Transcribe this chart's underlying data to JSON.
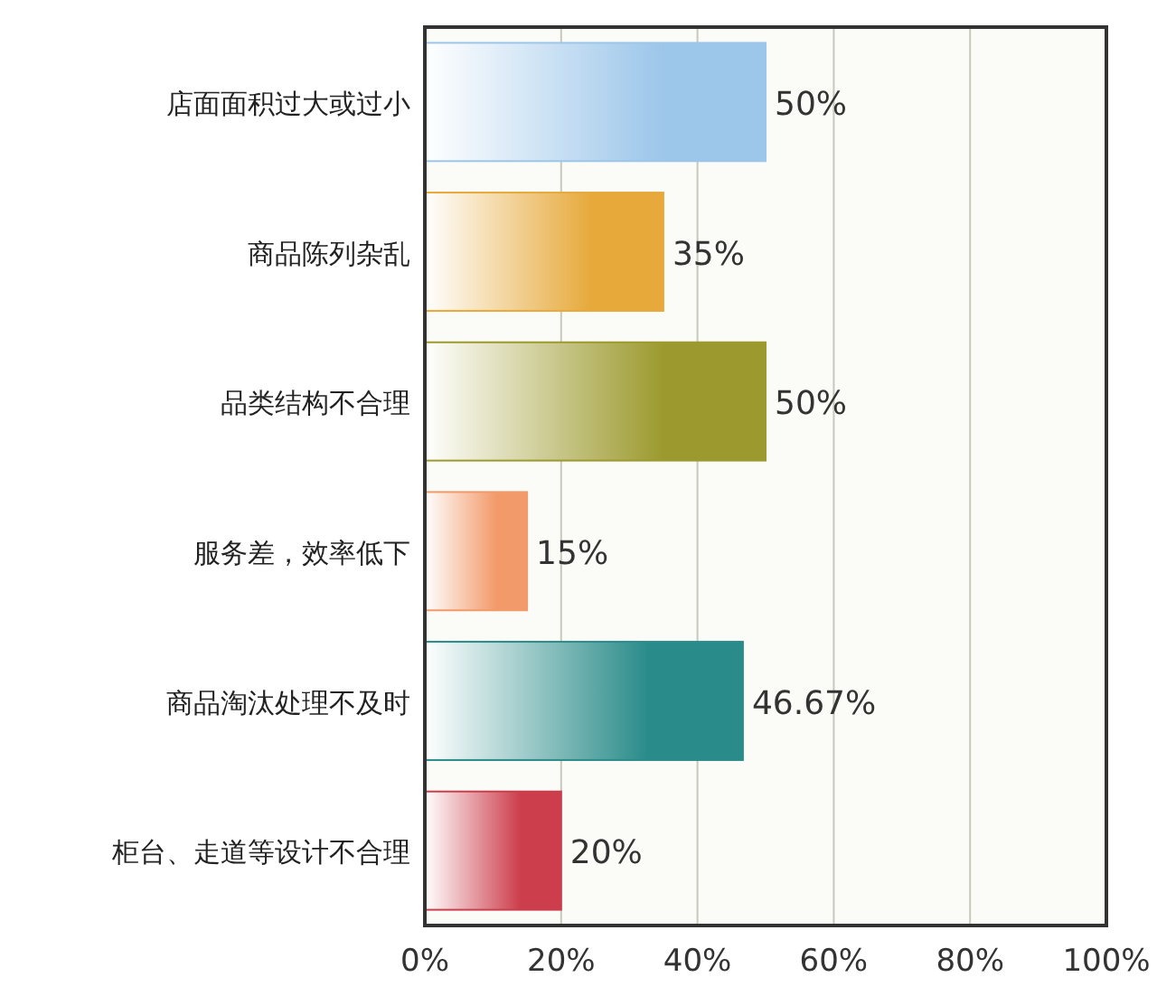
{
  "chart_data": {
    "type": "bar",
    "orientation": "horizontal",
    "categories": [
      "店面面积过大或过小",
      "商品陈列杂乱",
      "品类结构不合理",
      "服务差，效率低下",
      "商品淘汰处理不及时",
      "柜台、走道等设计不合理"
    ],
    "values": [
      50,
      35,
      50,
      15,
      46.67,
      20
    ],
    "value_labels": [
      "50%",
      "35%",
      "50%",
      "15%",
      "46.67%",
      "20%"
    ],
    "colors": [
      "#9cc6ea",
      "#e6a93a",
      "#9c9a2e",
      "#f29a6a",
      "#2a8c8a",
      "#cc3e4c"
    ],
    "xlim": [
      0,
      100
    ],
    "xticks": [
      {
        "value": 0,
        "label": "0%"
      },
      {
        "value": 20,
        "label": "20%"
      },
      {
        "value": 40,
        "label": "40%"
      },
      {
        "value": 60,
        "label": "60%"
      },
      {
        "value": 80,
        "label": "80%"
      },
      {
        "value": 100,
        "label": "100%"
      }
    ],
    "grid": "x"
  }
}
